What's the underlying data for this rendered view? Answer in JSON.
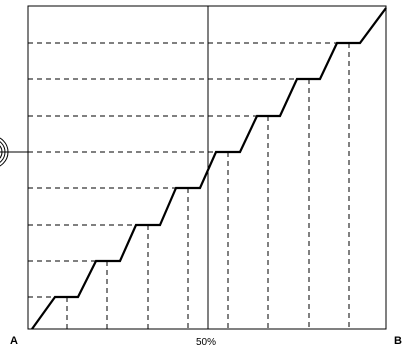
{
  "labels": {
    "left_end": "A",
    "right_end": "B",
    "center": "50%"
  },
  "colors": {
    "stroke": "#000000",
    "background": "#ffffff"
  },
  "staircase": {
    "steps": 9,
    "description_note": ""
  }
}
